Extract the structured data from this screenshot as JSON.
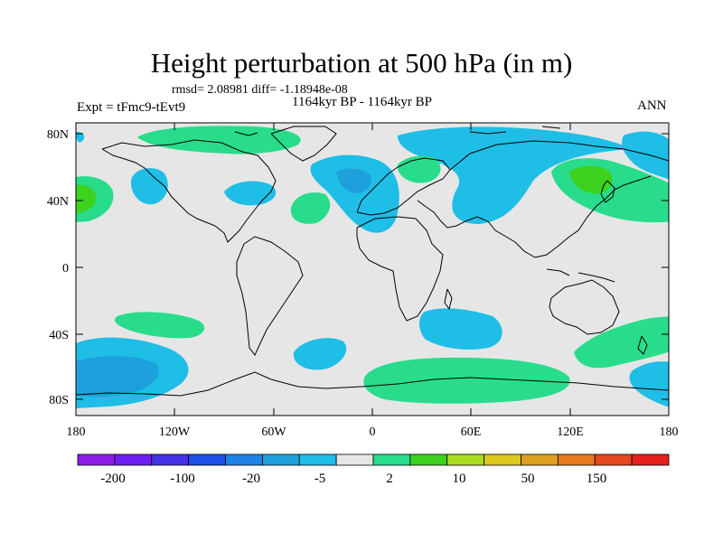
{
  "title": "Height perturbation at 500 hPa (in m)",
  "stats": "rmsd= 2.08981  diff= -1.18948e-08",
  "period": "1164kyr BP - 1164kyr BP",
  "experiment": "Expt = tFmc9-tEvt9",
  "season": "ANN",
  "axes": {
    "lat_labels": [
      "80N",
      "40N",
      "0",
      "40S",
      "80S"
    ],
    "lon_labels": [
      "180",
      "120W",
      "60W",
      "0",
      "60E",
      "120E",
      "180"
    ]
  },
  "colorbar": {
    "colors": [
      "#8c1ee6",
      "#6e1ef0",
      "#4632e6",
      "#1e50e6",
      "#1e82e6",
      "#1ea0dc",
      "#1ebee6",
      "#e6e6e6",
      "#28dc8c",
      "#3cd21e",
      "#aadc1e",
      "#dcc81e",
      "#dca01e",
      "#e6781e",
      "#e6461e",
      "#e61e1e"
    ],
    "labels": [
      "-200",
      "-100",
      "-20",
      "-5",
      "2",
      "10",
      "50",
      "150"
    ]
  },
  "chart_data": {
    "type": "map-contour",
    "title": "Height perturbation at 500 hPa (in m)",
    "subtitle": "1164kyr BP - 1164kyr BP",
    "annotations": [
      "rmsd= 2.08981  diff= -1.18948e-08",
      "Expt = tFmc9-tEvt9",
      "ANN"
    ],
    "lon_range": [
      -180,
      180
    ],
    "lat_range": [
      -90,
      90
    ],
    "units": "m",
    "levels": [
      -200,
      -100,
      -50,
      -20,
      -10,
      -5,
      -2,
      2,
      5,
      10,
      20,
      50,
      100,
      150,
      200
    ],
    "features": [
      {
        "region": "North Atlantic / Europe",
        "sign": "negative",
        "approx_value": -5
      },
      {
        "region": "Northern Asia / Siberia",
        "sign": "negative",
        "approx_value": -5
      },
      {
        "region": "Eastern North America",
        "sign": "negative",
        "approx_value": -5
      },
      {
        "region": "North Pacific (160W)",
        "sign": "negative",
        "approx_value": -5
      },
      {
        "region": "Japan / NW Pacific",
        "sign": "positive",
        "approx_value": 5
      },
      {
        "region": "Greenland",
        "sign": "positive",
        "approx_value": 2
      },
      {
        "region": "South Pacific (150W, 60S)",
        "sign": "negative",
        "approx_value": -10
      },
      {
        "region": "Southern Ocean south of Africa",
        "sign": "positive",
        "approx_value": 2
      },
      {
        "region": "South Pacific (SE of Australia)",
        "sign": "positive",
        "approx_value": 2
      }
    ]
  }
}
